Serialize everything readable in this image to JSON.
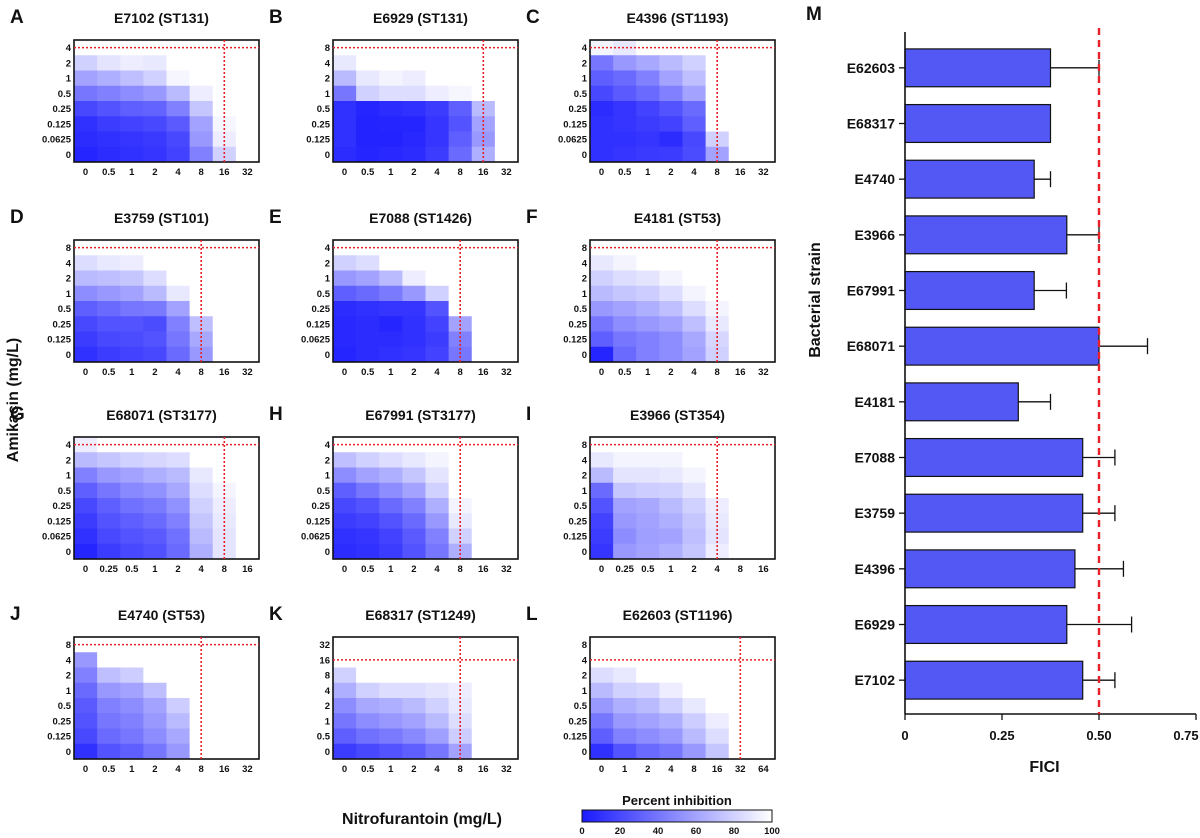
{
  "figure": {
    "y_axis_title": "Amikacin (mg/L)",
    "x_axis_title": "Nitrofurantoin (mg/L)",
    "colorbar": {
      "title": "Percent inhibition",
      "ticks": [
        "0",
        "20",
        "40",
        "60",
        "80",
        "100"
      ],
      "low_color": "#1a1aff",
      "high_color": "#ffffff"
    },
    "threshold_color": "#e8202a"
  },
  "chart_data": [
    {
      "type": "heatmap",
      "panel": "A",
      "title": "E7102 (ST131)",
      "y_ticks": [
        "4",
        "2",
        "1",
        "0.5",
        "0.25",
        "0.125",
        "0.0625",
        "0"
      ],
      "x_ticks": [
        "0",
        "0.5",
        "1",
        "2",
        "4",
        "8",
        "16",
        "32"
      ],
      "mic_x": 6.5,
      "mic_y": 0.5,
      "inhibition": [
        [
          100,
          100,
          100,
          100,
          100,
          100,
          100,
          100
        ],
        [
          80,
          88,
          92,
          90,
          100,
          100,
          100,
          100
        ],
        [
          60,
          65,
          72,
          80,
          96,
          100,
          100,
          100
        ],
        [
          40,
          45,
          50,
          55,
          70,
          92,
          100,
          100
        ],
        [
          20,
          25,
          30,
          32,
          45,
          75,
          100,
          100
        ],
        [
          10,
          15,
          18,
          20,
          28,
          60,
          96,
          100
        ],
        [
          8,
          10,
          12,
          14,
          20,
          55,
          92,
          100
        ],
        [
          5,
          8,
          10,
          12,
          18,
          45,
          80,
          100
        ]
      ]
    },
    {
      "type": "heatmap",
      "panel": "B",
      "title": "E6929 (ST131)",
      "y_ticks": [
        "8",
        "4",
        "2",
        "1",
        "0.5",
        "0.25",
        "0.125",
        "0"
      ],
      "x_ticks": [
        "0",
        "0.5",
        "1",
        "2",
        "4",
        "8",
        "16",
        "32"
      ],
      "mic_x": 6.5,
      "mic_y": 0.5,
      "inhibition": [
        [
          100,
          100,
          100,
          100,
          100,
          100,
          100,
          100
        ],
        [
          90,
          100,
          100,
          100,
          100,
          100,
          100,
          100
        ],
        [
          70,
          90,
          95,
          92,
          100,
          100,
          100,
          100
        ],
        [
          40,
          80,
          85,
          85,
          92,
          96,
          100,
          100
        ],
        [
          10,
          5,
          8,
          10,
          15,
          30,
          70,
          100
        ],
        [
          10,
          4,
          5,
          5,
          12,
          25,
          60,
          100
        ],
        [
          10,
          4,
          4,
          6,
          12,
          30,
          55,
          100
        ],
        [
          8,
          5,
          6,
          8,
          15,
          35,
          65,
          100
        ]
      ]
    },
    {
      "type": "heatmap",
      "panel": "C",
      "title": "E4396 (ST1193)",
      "y_ticks": [
        "4",
        "2",
        "1",
        "0.5",
        "0.25",
        "0.125",
        "0.0625",
        "0"
      ],
      "x_ticks": [
        "0",
        "0.5",
        "1",
        "2",
        "4",
        "8",
        "16",
        "32"
      ],
      "mic_x": 5.5,
      "mic_y": 0.5,
      "inhibition": [
        [
          95,
          90,
          100,
          100,
          100,
          100,
          100,
          100
        ],
        [
          40,
          55,
          62,
          70,
          80,
          100,
          100,
          100
        ],
        [
          30,
          35,
          45,
          60,
          72,
          100,
          100,
          100
        ],
        [
          20,
          28,
          35,
          45,
          60,
          100,
          100,
          100
        ],
        [
          8,
          12,
          18,
          25,
          35,
          100,
          100,
          100
        ],
        [
          10,
          12,
          15,
          18,
          30,
          100,
          100,
          100
        ],
        [
          10,
          10,
          12,
          8,
          20,
          80,
          100,
          100
        ],
        [
          10,
          12,
          14,
          15,
          22,
          60,
          100,
          100
        ]
      ]
    },
    {
      "type": "heatmap",
      "panel": "D",
      "title": "E3759 (ST101)",
      "y_ticks": [
        "8",
        "4",
        "2",
        "1",
        "0.5",
        "0.25",
        "0.125",
        "0"
      ],
      "x_ticks": [
        "0",
        "0.5",
        "1",
        "2",
        "4",
        "8",
        "16",
        "32"
      ],
      "mic_x": 5.5,
      "mic_y": 0.5,
      "inhibition": [
        [
          100,
          100,
          100,
          100,
          100,
          100,
          100,
          100
        ],
        [
          85,
          90,
          92,
          100,
          100,
          100,
          100,
          100
        ],
        [
          70,
          72,
          75,
          85,
          100,
          100,
          100,
          100
        ],
        [
          50,
          55,
          60,
          70,
          90,
          100,
          100,
          100
        ],
        [
          30,
          35,
          40,
          42,
          60,
          100,
          100,
          100
        ],
        [
          20,
          25,
          25,
          22,
          45,
          72,
          100,
          100
        ],
        [
          15,
          20,
          22,
          25,
          40,
          62,
          100,
          100
        ],
        [
          10,
          15,
          18,
          20,
          35,
          55,
          100,
          100
        ]
      ]
    },
    {
      "type": "heatmap",
      "panel": "E",
      "title": "E7088 (ST1426)",
      "y_ticks": [
        "4",
        "2",
        "1",
        "0.5",
        "0.25",
        "0.125",
        "0.0625",
        "0"
      ],
      "x_ticks": [
        "0",
        "0.5",
        "1",
        "2",
        "4",
        "8",
        "16",
        "32"
      ],
      "mic_x": 5.5,
      "mic_y": 0.5,
      "inhibition": [
        [
          100,
          100,
          100,
          100,
          100,
          100,
          100,
          100
        ],
        [
          80,
          85,
          100,
          100,
          100,
          100,
          100,
          100
        ],
        [
          55,
          60,
          70,
          92,
          100,
          100,
          100,
          100
        ],
        [
          30,
          35,
          42,
          55,
          80,
          100,
          100,
          100
        ],
        [
          8,
          10,
          12,
          12,
          25,
          100,
          100,
          100
        ],
        [
          6,
          8,
          5,
          10,
          18,
          60,
          100,
          100
        ],
        [
          6,
          8,
          8,
          10,
          15,
          45,
          100,
          100
        ],
        [
          5,
          8,
          10,
          12,
          18,
          40,
          100,
          100
        ]
      ]
    },
    {
      "type": "heatmap",
      "panel": "F",
      "title": "E4181 (ST53)",
      "y_ticks": [
        "8",
        "4",
        "2",
        "1",
        "0.5",
        "0.25",
        "0.125",
        "0"
      ],
      "x_ticks": [
        "0",
        "0.5",
        "1",
        "2",
        "4",
        "8",
        "16",
        "32"
      ],
      "mic_x": 5.5,
      "mic_y": 0.5,
      "inhibition": [
        [
          100,
          100,
          100,
          100,
          100,
          100,
          100,
          100
        ],
        [
          90,
          95,
          100,
          100,
          100,
          100,
          100,
          100
        ],
        [
          80,
          85,
          88,
          95,
          100,
          100,
          100,
          100
        ],
        [
          70,
          75,
          78,
          85,
          95,
          100,
          100,
          100
        ],
        [
          55,
          60,
          65,
          72,
          85,
          95,
          100,
          100
        ],
        [
          40,
          50,
          55,
          60,
          72,
          90,
          100,
          100
        ],
        [
          30,
          40,
          45,
          50,
          62,
          82,
          100,
          100
        ],
        [
          5,
          35,
          45,
          50,
          60,
          80,
          100,
          100
        ]
      ]
    },
    {
      "type": "heatmap",
      "panel": "G",
      "title": "E68071 (ST3177)",
      "y_ticks": [
        "4",
        "2",
        "1",
        "0.5",
        "0.25",
        "0.125",
        "0.0625",
        "0"
      ],
      "x_ticks": [
        "0",
        "0.25",
        "0.5",
        "1",
        "2",
        "4",
        "8",
        "16"
      ],
      "mic_x": 6.5,
      "mic_y": 0.5,
      "inhibition": [
        [
          92,
          100,
          100,
          100,
          100,
          100,
          100,
          100
        ],
        [
          70,
          75,
          80,
          82,
          85,
          100,
          100,
          100
        ],
        [
          45,
          55,
          60,
          65,
          70,
          90,
          100,
          100
        ],
        [
          30,
          40,
          48,
          52,
          62,
          85,
          95,
          100
        ],
        [
          20,
          30,
          38,
          42,
          52,
          80,
          92,
          100
        ],
        [
          15,
          25,
          30,
          35,
          45,
          75,
          90,
          100
        ],
        [
          10,
          20,
          25,
          28,
          38,
          70,
          88,
          100
        ],
        [
          5,
          15,
          20,
          24,
          35,
          65,
          88,
          100
        ]
      ]
    },
    {
      "type": "heatmap",
      "panel": "H",
      "title": "E67991 (ST3177)",
      "y_ticks": [
        "4",
        "2",
        "1",
        "0.5",
        "0.25",
        "0.125",
        "0.0625",
        "0"
      ],
      "x_ticks": [
        "0",
        "0.5",
        "1",
        "2",
        "4",
        "8",
        "16",
        "32"
      ],
      "mic_x": 5.5,
      "mic_y": 0.5,
      "inhibition": [
        [
          100,
          100,
          100,
          100,
          100,
          100,
          100,
          100
        ],
        [
          72,
          80,
          85,
          90,
          95,
          100,
          100,
          100
        ],
        [
          50,
          60,
          65,
          75,
          88,
          100,
          100,
          100
        ],
        [
          30,
          40,
          50,
          60,
          80,
          100,
          100,
          100
        ],
        [
          20,
          25,
          35,
          45,
          65,
          95,
          100,
          100
        ],
        [
          15,
          18,
          25,
          35,
          55,
          90,
          100,
          100
        ],
        [
          10,
          12,
          18,
          28,
          45,
          80,
          100,
          100
        ],
        [
          8,
          10,
          15,
          25,
          40,
          65,
          100,
          100
        ]
      ]
    },
    {
      "type": "heatmap",
      "panel": "I",
      "title": "E3966 (ST354)",
      "y_ticks": [
        "8",
        "4",
        "2",
        "1",
        "0.5",
        "0.25",
        "0.125",
        "0"
      ],
      "x_ticks": [
        "0",
        "0.25",
        "0.5",
        "1",
        "2",
        "4",
        "8",
        "16"
      ],
      "mic_x": 5.5,
      "mic_y": 0.5,
      "inhibition": [
        [
          100,
          100,
          100,
          100,
          100,
          100,
          100,
          100
        ],
        [
          90,
          95,
          95,
          95,
          100,
          100,
          100,
          100
        ],
        [
          70,
          88,
          88,
          90,
          95,
          100,
          100,
          100
        ],
        [
          35,
          75,
          78,
          80,
          88,
          100,
          100,
          100
        ],
        [
          25,
          60,
          62,
          70,
          80,
          92,
          100,
          100
        ],
        [
          18,
          55,
          60,
          65,
          75,
          90,
          100,
          100
        ],
        [
          15,
          50,
          58,
          60,
          72,
          88,
          100,
          100
        ],
        [
          12,
          55,
          60,
          65,
          75,
          92,
          100,
          100
        ]
      ]
    },
    {
      "type": "heatmap",
      "panel": "J",
      "title": "E4740 (ST53)",
      "y_ticks": [
        "8",
        "4",
        "2",
        "1",
        "0.5",
        "0.25",
        "0.125",
        "0"
      ],
      "x_ticks": [
        "0",
        "0.5",
        "1",
        "2",
        "4",
        "8",
        "16",
        "32"
      ],
      "mic_x": 5.5,
      "mic_y": 0.5,
      "inhibition": [
        [
          100,
          100,
          100,
          100,
          100,
          100,
          100,
          100
        ],
        [
          55,
          100,
          100,
          100,
          100,
          100,
          100,
          100
        ],
        [
          45,
          72,
          78,
          100,
          100,
          100,
          100,
          100
        ],
        [
          35,
          55,
          60,
          72,
          100,
          100,
          100,
          100
        ],
        [
          28,
          45,
          50,
          60,
          78,
          100,
          100,
          100
        ],
        [
          25,
          40,
          45,
          55,
          70,
          100,
          100,
          100
        ],
        [
          20,
          35,
          40,
          50,
          62,
          100,
          100,
          100
        ],
        [
          10,
          25,
          30,
          40,
          55,
          100,
          100,
          100
        ]
      ]
    },
    {
      "type": "heatmap",
      "panel": "K",
      "title": "E68317 (ST1249)",
      "y_ticks": [
        "32",
        "16",
        "8",
        "4",
        "2",
        "1",
        "0.5",
        "0"
      ],
      "x_ticks": [
        "0",
        "0.5",
        "1",
        "2",
        "4",
        "8",
        "16",
        "32"
      ],
      "mic_x": 5.5,
      "mic_y": 1.5,
      "inhibition": [
        [
          100,
          100,
          100,
          100,
          100,
          100,
          100,
          100
        ],
        [
          100,
          100,
          100,
          100,
          100,
          100,
          100,
          100
        ],
        [
          80,
          100,
          100,
          100,
          100,
          100,
          100,
          100
        ],
        [
          65,
          80,
          85,
          85,
          88,
          92,
          100,
          100
        ],
        [
          50,
          62,
          65,
          70,
          80,
          90,
          100,
          100
        ],
        [
          40,
          50,
          55,
          60,
          70,
          85,
          100,
          100
        ],
        [
          30,
          38,
          42,
          48,
          58,
          78,
          100,
          100
        ],
        [
          15,
          20,
          25,
          30,
          40,
          60,
          100,
          100
        ]
      ]
    },
    {
      "type": "heatmap",
      "panel": "L",
      "title": "E62603 (ST1196)",
      "y_ticks": [
        "8",
        "4",
        "2",
        "1",
        "0.5",
        "0.25",
        "0.125",
        "0"
      ],
      "x_ticks": [
        "0",
        "1",
        "2",
        "4",
        "8",
        "16",
        "32",
        "64"
      ],
      "mic_x": 6.5,
      "mic_y": 1.5,
      "inhibition": [
        [
          100,
          100,
          100,
          100,
          100,
          100,
          100,
          100
        ],
        [
          100,
          100,
          100,
          100,
          100,
          100,
          100,
          100
        ],
        [
          85,
          90,
          100,
          100,
          100,
          100,
          100,
          100
        ],
        [
          70,
          80,
          82,
          92,
          100,
          100,
          100,
          100
        ],
        [
          55,
          65,
          70,
          80,
          90,
          100,
          100,
          100
        ],
        [
          40,
          55,
          60,
          65,
          78,
          92,
          100,
          100
        ],
        [
          30,
          45,
          50,
          55,
          70,
          85,
          100,
          100
        ],
        [
          10,
          25,
          35,
          40,
          55,
          75,
          100,
          100
        ]
      ]
    },
    {
      "type": "bar",
      "panel": "M",
      "orientation": "horizontal",
      "xlabel": "FICI",
      "ylabel": "Bacterial strain",
      "categories": [
        "E62603",
        "E68317",
        "E4740",
        "E3966",
        "E67991",
        "E68071",
        "E4181",
        "E7088",
        "E3759",
        "E4396",
        "E6929",
        "E7102"
      ],
      "values": [
        0.375,
        0.375,
        0.333,
        0.417,
        0.333,
        0.5,
        0.292,
        0.458,
        0.458,
        0.438,
        0.417,
        0.458
      ],
      "errors": [
        0.125,
        0.0,
        0.042,
        0.083,
        0.083,
        0.125,
        0.083,
        0.083,
        0.083,
        0.125,
        0.167,
        0.083
      ],
      "xlim": [
        0,
        0.75
      ],
      "x_ticks": [
        "0",
        "0.25",
        "0.50",
        "0.75"
      ],
      "threshold": 0.5,
      "bar_color": "#5358f5"
    }
  ]
}
